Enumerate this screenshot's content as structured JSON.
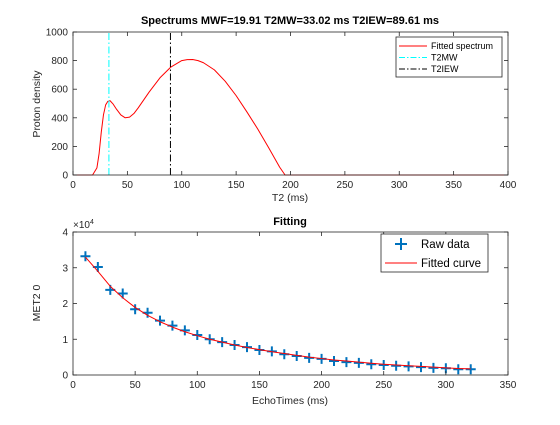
{
  "chart_data": [
    {
      "type": "line",
      "title": "Spectrums MWF=19.91 T2MW=33.02 ms T2IEW=89.61 ms",
      "xlabel": "T2 (ms)",
      "ylabel": "Proton density",
      "xlim": [
        0,
        400
      ],
      "ylim": [
        0,
        1000
      ],
      "xticks": [
        0,
        50,
        100,
        150,
        200,
        250,
        300,
        350,
        400
      ],
      "yticks": [
        0,
        200,
        400,
        600,
        800,
        1000
      ],
      "grid": false,
      "legend_position": "top-right",
      "series": [
        {
          "name": "Fitted spectrum",
          "color": "#ff0000",
          "style": "solid",
          "x": [
            0,
            18,
            22,
            24,
            26,
            28,
            30,
            32,
            34,
            37,
            40,
            44,
            48,
            52,
            56,
            60,
            70,
            80,
            90,
            100,
            105,
            110,
            115,
            120,
            130,
            140,
            150,
            160,
            170,
            180,
            190,
            195,
            200,
            250,
            300,
            350,
            400
          ],
          "y": [
            0,
            0,
            50,
            150,
            300,
            420,
            490,
            515,
            520,
            495,
            460,
            420,
            400,
            405,
            430,
            470,
            580,
            680,
            755,
            800,
            807,
            808,
            800,
            785,
            735,
            655,
            555,
            440,
            320,
            190,
            55,
            0,
            0,
            0,
            0,
            0,
            0
          ]
        },
        {
          "name": "T2MW",
          "color": "#00ffff",
          "style": "dash-dot",
          "x": [
            33.02,
            33.02
          ],
          "y": [
            0,
            1000
          ]
        },
        {
          "name": "T2IEW",
          "color": "#000000",
          "style": "dash-dot",
          "x": [
            89.61,
            89.61
          ],
          "y": [
            0,
            1000
          ]
        }
      ]
    },
    {
      "type": "line",
      "title": "Fitting",
      "xlabel": "EchoTimes (ms)",
      "ylabel": "MET2 0",
      "y_exponent_label": "×10",
      "y_exponent": "4",
      "xlim": [
        0,
        350
      ],
      "ylim": [
        0,
        4
      ],
      "xticks": [
        0,
        50,
        100,
        150,
        200,
        250,
        300,
        350
      ],
      "yticks": [
        0,
        1,
        2,
        3,
        4
      ],
      "grid": false,
      "legend_position": "top-right",
      "series": [
        {
          "name": "Raw data",
          "color": "#0072bd",
          "marker": "+",
          "x": [
            10,
            20,
            30,
            40,
            50,
            60,
            70,
            80,
            90,
            100,
            110,
            120,
            130,
            140,
            150,
            160,
            170,
            180,
            190,
            200,
            210,
            220,
            230,
            240,
            250,
            260,
            270,
            280,
            290,
            300,
            310,
            320
          ],
          "y": [
            3.32,
            3.02,
            2.38,
            2.28,
            1.84,
            1.74,
            1.52,
            1.38,
            1.25,
            1.12,
            1.0,
            0.92,
            0.84,
            0.78,
            0.7,
            0.66,
            0.58,
            0.53,
            0.48,
            0.45,
            0.39,
            0.36,
            0.34,
            0.3,
            0.28,
            0.26,
            0.24,
            0.22,
            0.2,
            0.19,
            0.16,
            0.16
          ]
        },
        {
          "name": "Fitted curve",
          "color": "#ff0000",
          "style": "solid",
          "x": [
            10,
            20,
            30,
            40,
            50,
            60,
            70,
            80,
            90,
            100,
            110,
            120,
            130,
            140,
            150,
            160,
            170,
            180,
            190,
            200,
            210,
            220,
            230,
            240,
            250,
            260,
            270,
            280,
            290,
            300,
            310,
            320
          ],
          "y": [
            3.3,
            2.9,
            2.48,
            2.16,
            1.89,
            1.67,
            1.49,
            1.34,
            1.21,
            1.1,
            1.0,
            0.92,
            0.84,
            0.77,
            0.71,
            0.65,
            0.6,
            0.55,
            0.5,
            0.46,
            0.42,
            0.39,
            0.36,
            0.33,
            0.3,
            0.28,
            0.26,
            0.24,
            0.22,
            0.2,
            0.18,
            0.17
          ]
        }
      ]
    }
  ]
}
